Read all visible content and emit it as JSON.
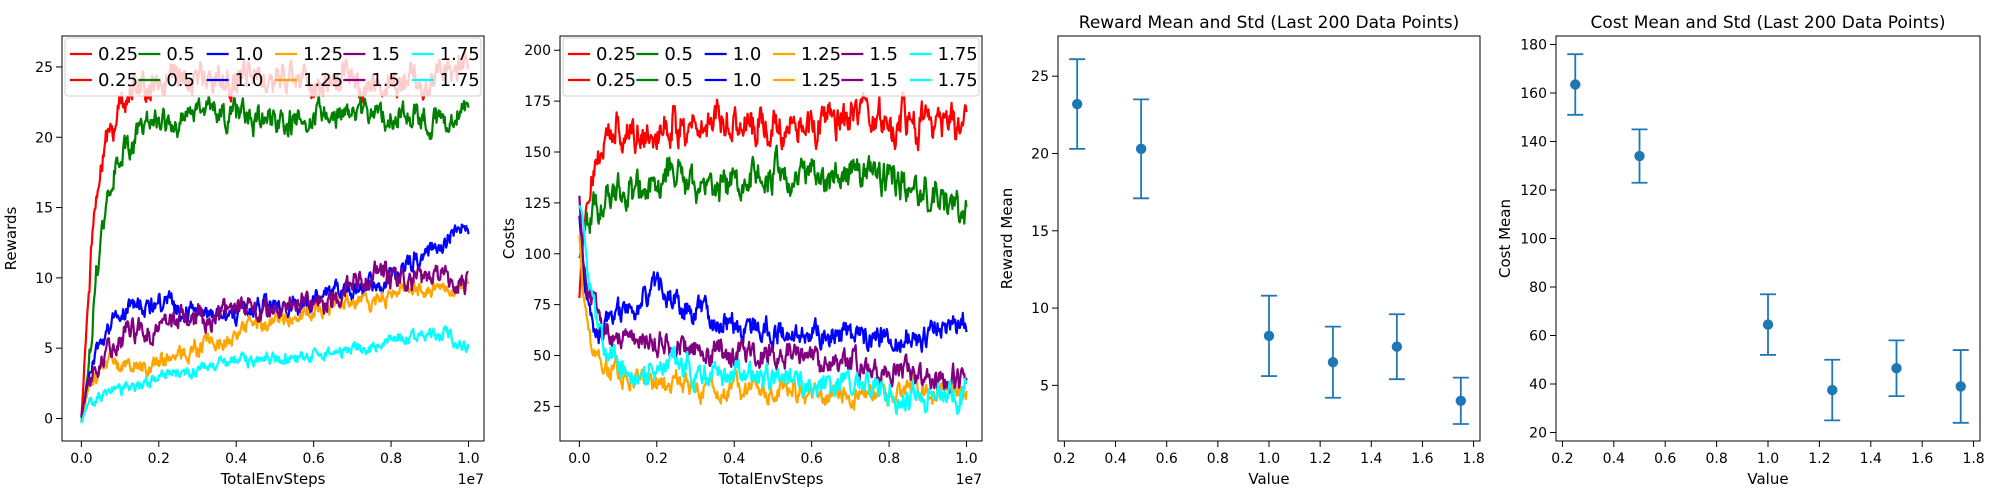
{
  "chart_data": [
    {
      "type": "line",
      "title": "",
      "xlabel": "TotalEnvSteps",
      "ylabel": "Rewards",
      "x_offset_label": "1e7",
      "xlim": [
        -0.05,
        1.04
      ],
      "ylim": [
        -1.6,
        27.2
      ],
      "xticks": [
        0.0,
        0.2,
        0.4,
        0.6,
        0.8,
        1.0
      ],
      "xtick_labels": [
        "0.0",
        "0.2",
        "0.4",
        "0.6",
        "0.8",
        "1.0"
      ],
      "yticks": [
        0,
        5,
        10,
        15,
        20,
        25
      ],
      "ytick_labels": [
        "0",
        "5",
        "10",
        "15",
        "20",
        "25"
      ],
      "legend": {
        "placement": "top",
        "columns": 6,
        "entries": [
          "0.25",
          "0.5",
          "1.0",
          "1.25",
          "1.5",
          "1.75",
          "0.25",
          "0.5",
          "1.0",
          "1.25",
          "1.5",
          "1.75"
        ]
      },
      "series": [
        {
          "name": "0.25",
          "color": "#ff0000",
          "noise": 1.0,
          "points": [
            [
              0,
              0
            ],
            [
              0.01,
              5
            ],
            [
              0.03,
              14
            ],
            [
              0.06,
              19
            ],
            [
              0.1,
              22.5
            ],
            [
              0.15,
              23.5
            ],
            [
              0.25,
              24
            ],
            [
              0.4,
              24
            ],
            [
              0.6,
              24
            ],
            [
              0.8,
              24
            ],
            [
              0.9,
              24
            ],
            [
              1.0,
              25
            ]
          ]
        },
        {
          "name": "0.5",
          "color": "#008000",
          "noise": 0.9,
          "points": [
            [
              0,
              -0.3
            ],
            [
              0.02,
              4
            ],
            [
              0.04,
              11
            ],
            [
              0.07,
              16
            ],
            [
              0.1,
              19
            ],
            [
              0.15,
              20
            ],
            [
              0.2,
              21
            ],
            [
              0.3,
              22
            ],
            [
              0.45,
              21.5
            ],
            [
              0.6,
              21.5
            ],
            [
              0.75,
              21.5
            ],
            [
              0.85,
              21.5
            ],
            [
              0.95,
              21
            ],
            [
              1.0,
              22.5
            ]
          ]
        },
        {
          "name": "1.0",
          "color": "#0000ff",
          "noise": 0.7,
          "points": [
            [
              0,
              0
            ],
            [
              0.02,
              3
            ],
            [
              0.06,
              6
            ],
            [
              0.1,
              7.5
            ],
            [
              0.2,
              8
            ],
            [
              0.3,
              7.5
            ],
            [
              0.4,
              7.5
            ],
            [
              0.5,
              8
            ],
            [
              0.6,
              8.5
            ],
            [
              0.7,
              9
            ],
            [
              0.8,
              10
            ],
            [
              0.9,
              12
            ],
            [
              0.95,
              13
            ],
            [
              1.0,
              14
            ]
          ]
        },
        {
          "name": "1.25",
          "color": "#ffa500",
          "noise": 0.6,
          "points": [
            [
              0,
              -0.3
            ],
            [
              0.02,
              2.5
            ],
            [
              0.06,
              3.5
            ],
            [
              0.1,
              4
            ],
            [
              0.2,
              4
            ],
            [
              0.3,
              5
            ],
            [
              0.4,
              6
            ],
            [
              0.5,
              7
            ],
            [
              0.6,
              7.5
            ],
            [
              0.7,
              8
            ],
            [
              0.8,
              9
            ],
            [
              0.9,
              9.5
            ],
            [
              1.0,
              9
            ]
          ]
        },
        {
          "name": "1.5",
          "color": "#800080",
          "noise": 0.8,
          "points": [
            [
              0,
              0
            ],
            [
              0.02,
              3
            ],
            [
              0.06,
              5
            ],
            [
              0.1,
              6
            ],
            [
              0.2,
              6.5
            ],
            [
              0.3,
              7
            ],
            [
              0.4,
              7.5
            ],
            [
              0.5,
              8
            ],
            [
              0.6,
              8.5
            ],
            [
              0.7,
              9.5
            ],
            [
              0.8,
              10
            ],
            [
              0.9,
              9.5
            ],
            [
              1.0,
              9.5
            ]
          ]
        },
        {
          "name": "1.75",
          "color": "#00ffff",
          "noise": 0.45,
          "points": [
            [
              0,
              -0.4
            ],
            [
              0.02,
              1.2
            ],
            [
              0.06,
              2
            ],
            [
              0.1,
              2.3
            ],
            [
              0.2,
              3
            ],
            [
              0.3,
              3.5
            ],
            [
              0.4,
              4
            ],
            [
              0.5,
              4.3
            ],
            [
              0.6,
              4.5
            ],
            [
              0.7,
              5
            ],
            [
              0.8,
              5.3
            ],
            [
              0.9,
              6
            ],
            [
              0.95,
              6.3
            ],
            [
              1.0,
              5
            ]
          ]
        }
      ]
    },
    {
      "type": "line",
      "title": "",
      "xlabel": "TotalEnvSteps",
      "ylabel": "Costs",
      "x_offset_label": "1e7",
      "xlim": [
        -0.05,
        1.04
      ],
      "ylim": [
        8,
        207
      ],
      "xticks": [
        0.0,
        0.2,
        0.4,
        0.6,
        0.8,
        1.0
      ],
      "xtick_labels": [
        "0.0",
        "0.2",
        "0.4",
        "0.6",
        "0.8",
        "1.0"
      ],
      "yticks": [
        25,
        50,
        75,
        100,
        125,
        150,
        175,
        200
      ],
      "ytick_labels": [
        "25",
        "50",
        "75",
        "100",
        "125",
        "150",
        "175",
        "200"
      ],
      "legend": {
        "placement": "top",
        "columns": 6,
        "entries": [
          "0.25",
          "0.5",
          "1.0",
          "1.25",
          "1.5",
          "1.75",
          "0.25",
          "0.5",
          "1.0",
          "1.25",
          "1.5",
          "1.75"
        ]
      },
      "series": [
        {
          "name": "0.25",
          "color": "#ff0000",
          "noise": 9,
          "points": [
            [
              0,
              80
            ],
            [
              0.01,
              110
            ],
            [
              0.03,
              140
            ],
            [
              0.06,
              155
            ],
            [
              0.1,
              160
            ],
            [
              0.2,
              165
            ],
            [
              0.3,
              165
            ],
            [
              0.4,
              165
            ],
            [
              0.5,
              165
            ],
            [
              0.6,
              162
            ],
            [
              0.7,
              165
            ],
            [
              0.8,
              162
            ],
            [
              0.9,
              165
            ],
            [
              1.0,
              160
            ]
          ]
        },
        {
          "name": "0.5",
          "color": "#008000",
          "noise": 8,
          "points": [
            [
              0,
              100
            ],
            [
              0.02,
              120
            ],
            [
              0.05,
              125
            ],
            [
              0.1,
              130
            ],
            [
              0.2,
              135
            ],
            [
              0.3,
              135
            ],
            [
              0.4,
              135
            ],
            [
              0.5,
              138
            ],
            [
              0.6,
              140
            ],
            [
              0.7,
              140
            ],
            [
              0.8,
              138
            ],
            [
              0.9,
              132
            ],
            [
              1.0,
              120
            ]
          ]
        },
        {
          "name": "1.0",
          "color": "#0000ff",
          "noise": 6,
          "points": [
            [
              0,
              120
            ],
            [
              0.01,
              90
            ],
            [
              0.03,
              65
            ],
            [
              0.06,
              62
            ],
            [
              0.1,
              70
            ],
            [
              0.15,
              75
            ],
            [
              0.2,
              80
            ],
            [
              0.3,
              70
            ],
            [
              0.4,
              65
            ],
            [
              0.5,
              62
            ],
            [
              0.6,
              60
            ],
            [
              0.7,
              62
            ],
            [
              0.8,
              58
            ],
            [
              0.9,
              62
            ],
            [
              1.0,
              68
            ]
          ]
        },
        {
          "name": "1.25",
          "color": "#ffa500",
          "noise": 5,
          "points": [
            [
              0,
              110
            ],
            [
              0.01,
              80
            ],
            [
              0.03,
              55
            ],
            [
              0.06,
              48
            ],
            [
              0.1,
              42
            ],
            [
              0.2,
              38
            ],
            [
              0.3,
              35
            ],
            [
              0.4,
              33
            ],
            [
              0.5,
              32
            ],
            [
              0.6,
              32
            ],
            [
              0.7,
              32
            ],
            [
              0.8,
              33
            ],
            [
              0.9,
              34
            ],
            [
              1.0,
              33
            ]
          ]
        },
        {
          "name": "1.5",
          "color": "#800080",
          "noise": 6,
          "points": [
            [
              0,
              130
            ],
            [
              0.01,
              95
            ],
            [
              0.03,
              72
            ],
            [
              0.06,
              68
            ],
            [
              0.1,
              60
            ],
            [
              0.2,
              55
            ],
            [
              0.3,
              52
            ],
            [
              0.4,
              50
            ],
            [
              0.5,
              50
            ],
            [
              0.6,
              48
            ],
            [
              0.7,
              45
            ],
            [
              0.8,
              42
            ],
            [
              0.9,
              40
            ],
            [
              1.0,
              36
            ]
          ]
        },
        {
          "name": "1.75",
          "color": "#00ffff",
          "noise": 6,
          "points": [
            [
              0,
              125
            ],
            [
              0.01,
              115
            ],
            [
              0.03,
              80
            ],
            [
              0.06,
              55
            ],
            [
              0.1,
              45
            ],
            [
              0.15,
              40
            ],
            [
              0.2,
              45
            ],
            [
              0.3,
              42
            ],
            [
              0.4,
              40
            ],
            [
              0.5,
              38
            ],
            [
              0.6,
              36
            ],
            [
              0.7,
              34
            ],
            [
              0.8,
              30
            ],
            [
              0.9,
              28
            ],
            [
              1.0,
              30
            ]
          ]
        }
      ]
    },
    {
      "type": "scatter",
      "title": "Reward Mean and Std (Last 200 Data Points)",
      "xlabel": "Value",
      "ylabel": "Reward Mean",
      "xlim": [
        0.175,
        1.825
      ],
      "ylim": [
        1.4,
        27.6
      ],
      "xticks": [
        0.2,
        0.4,
        0.6,
        0.8,
        1.0,
        1.2,
        1.4,
        1.6,
        1.8
      ],
      "xtick_labels": [
        "0.2",
        "0.4",
        "0.6",
        "0.8",
        "1.0",
        "1.2",
        "1.4",
        "1.6",
        "1.8"
      ],
      "yticks": [
        5,
        10,
        15,
        20,
        25
      ],
      "ytick_labels": [
        "5",
        "10",
        "15",
        "20",
        "25"
      ],
      "color": "#1f77b4",
      "x": [
        0.25,
        0.5,
        1.0,
        1.25,
        1.5,
        1.75
      ],
      "y": [
        23.2,
        20.3,
        8.2,
        6.5,
        7.5,
        4.0
      ],
      "std": [
        2.9,
        3.2,
        2.6,
        2.3,
        2.1,
        1.5
      ]
    },
    {
      "type": "scatter",
      "title": "Cost Mean and Std (Last 200 Data Points)",
      "xlabel": "Value",
      "ylabel": "Cost Mean",
      "xlim": [
        0.175,
        1.825
      ],
      "ylim": [
        16.5,
        183.5
      ],
      "xticks": [
        0.2,
        0.4,
        0.6,
        0.8,
        1.0,
        1.2,
        1.4,
        1.6,
        1.8
      ],
      "xtick_labels": [
        "0.2",
        "0.4",
        "0.6",
        "0.8",
        "1.0",
        "1.2",
        "1.4",
        "1.6",
        "1.8"
      ],
      "yticks": [
        20,
        40,
        60,
        80,
        100,
        120,
        140,
        160,
        180
      ],
      "ytick_labels": [
        "20",
        "40",
        "60",
        "80",
        "100",
        "120",
        "140",
        "160",
        "180"
      ],
      "color": "#1f77b4",
      "x": [
        0.25,
        0.5,
        1.0,
        1.25,
        1.5,
        1.75
      ],
      "y": [
        163.5,
        134.0,
        64.5,
        37.5,
        46.5,
        39.0
      ],
      "std": [
        12.5,
        11.0,
        12.5,
        12.5,
        11.5,
        15.0
      ]
    }
  ]
}
